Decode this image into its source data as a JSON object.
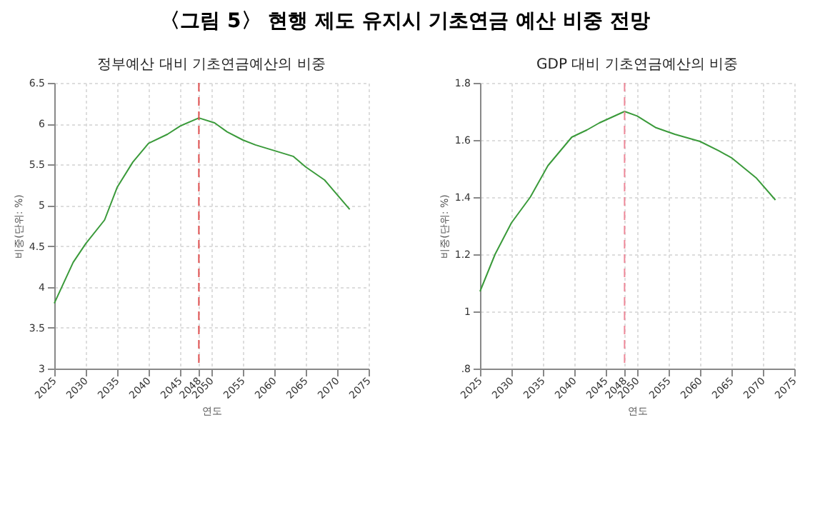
{
  "chart_data": [
    {
      "type": "line",
      "title": "정부예산 대비 기초연금예산의 비중",
      "xlabel": "연도",
      "ylabel": "비중(단위: %)",
      "annotations": [
        "〈그림 5〉 현행 제도 유지시 기초연금 예산 비중 전망"
      ],
      "x": [
        2025,
        2028,
        2030,
        2033,
        2035,
        2037.5,
        2040,
        2043,
        2045,
        2048,
        2050.5,
        2052.5,
        2055,
        2057,
        2060,
        2063,
        2065,
        2068,
        2072
      ],
      "series": [
        {
          "color": "#3a9a3a",
          "values": [
            3.8,
            4.3,
            4.53,
            4.82,
            5.22,
            5.53,
            5.76,
            5.87,
            5.97,
            6.07,
            6.01,
            5.9,
            5.8,
            5.74,
            5.67,
            5.6,
            5.47,
            5.31,
            4.95
          ]
        }
      ],
      "xlim": [
        2025,
        2075
      ],
      "xticks": [
        2025,
        2030,
        2035,
        2040,
        2045,
        2048,
        2050,
        2055,
        2060,
        2065,
        2070,
        2075
      ],
      "ylim": [
        3,
        6.5
      ],
      "yticks": [
        3,
        3.5,
        4,
        4.5,
        5,
        5.5,
        6,
        6.5
      ],
      "ref_lines": [
        {
          "axis": "x",
          "value": 2048,
          "color": "#e05050",
          "line_style": "dashed"
        }
      ],
      "grid": true
    },
    {
      "type": "line",
      "title": "GDP 대비 기초연금예산의 비중",
      "xlabel": "연도",
      "ylabel": "비중(단위: %)",
      "x": [
        2025,
        2027.4,
        2030,
        2033,
        2035.8,
        2039.6,
        2042,
        2044,
        2048,
        2050,
        2053,
        2056,
        2060,
        2063,
        2065,
        2069,
        2072
      ],
      "series": [
        {
          "color": "#3a9a3a",
          "values": [
            1.07,
            1.2,
            1.31,
            1.4,
            1.51,
            1.61,
            1.635,
            1.66,
            1.7,
            1.684,
            1.643,
            1.62,
            1.595,
            1.562,
            1.538,
            1.466,
            1.39
          ]
        }
      ],
      "xlim": [
        2025,
        2075
      ],
      "xticks": [
        2025,
        2030,
        2035,
        2040,
        2045,
        2048,
        2050,
        2055,
        2060,
        2065,
        2070,
        2075
      ],
      "ylim": [
        0.8,
        1.8
      ],
      "yticks": [
        {
          "value": 0.8,
          "label": ".8"
        },
        1,
        1.2,
        1.4,
        1.6,
        1.8
      ],
      "ref_lines": [
        {
          "axis": "x",
          "value": 2048,
          "color": "#ee8899",
          "line_style": "dashed"
        }
      ],
      "grid": true
    }
  ]
}
